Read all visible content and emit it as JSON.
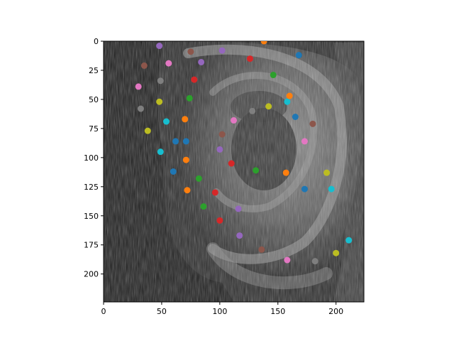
{
  "chart_data": {
    "type": "scatter",
    "title": "",
    "xlabel": "",
    "ylabel": "",
    "xlim": [
      0,
      224
    ],
    "ylim": [
      224,
      0
    ],
    "y_inverted": true,
    "grid": false,
    "background": "grayscale photograph of a human ear (close-up) shown via imshow",
    "xticks": [
      0,
      50,
      100,
      150,
      200
    ],
    "yticks": [
      0,
      25,
      50,
      75,
      100,
      125,
      150,
      175,
      200
    ],
    "color_cycle": [
      "#1f77b4",
      "#ff7f0e",
      "#2ca02c",
      "#d62728",
      "#9467bd",
      "#8c564b",
      "#e377c2",
      "#7f7f7f",
      "#bcbd22",
      "#17becf"
    ],
    "points": [
      {
        "x": 138,
        "y": 0,
        "color": "#ff7f0e"
      },
      {
        "x": 48,
        "y": 4,
        "color": "#9467bd"
      },
      {
        "x": 75,
        "y": 9,
        "color": "#8c564b"
      },
      {
        "x": 102,
        "y": 8,
        "color": "#9467bd"
      },
      {
        "x": 168,
        "y": 12,
        "color": "#1f77b4"
      },
      {
        "x": 126,
        "y": 15,
        "color": "#d62728"
      },
      {
        "x": 35,
        "y": 21,
        "color": "#8c564b"
      },
      {
        "x": 56,
        "y": 19,
        "color": "#e377c2"
      },
      {
        "x": 84,
        "y": 18,
        "color": "#9467bd"
      },
      {
        "x": 146,
        "y": 29,
        "color": "#2ca02c"
      },
      {
        "x": 78,
        "y": 33,
        "color": "#d62728"
      },
      {
        "x": 49,
        "y": 34,
        "color": "#7f7f7f"
      },
      {
        "x": 30,
        "y": 39,
        "color": "#e377c2"
      },
      {
        "x": 74,
        "y": 49,
        "color": "#2ca02c"
      },
      {
        "x": 160,
        "y": 47,
        "color": "#ff7f0e"
      },
      {
        "x": 48,
        "y": 52,
        "color": "#bcbd22"
      },
      {
        "x": 158,
        "y": 52,
        "color": "#17becf"
      },
      {
        "x": 142,
        "y": 56,
        "color": "#bcbd22"
      },
      {
        "x": 32,
        "y": 58,
        "color": "#7f7f7f"
      },
      {
        "x": 128,
        "y": 60,
        "color": "#7f7f7f"
      },
      {
        "x": 165,
        "y": 65,
        "color": "#1f77b4"
      },
      {
        "x": 54,
        "y": 69,
        "color": "#17becf"
      },
      {
        "x": 70,
        "y": 67,
        "color": "#ff7f0e"
      },
      {
        "x": 112,
        "y": 68,
        "color": "#e377c2"
      },
      {
        "x": 180,
        "y": 71,
        "color": "#8c564b"
      },
      {
        "x": 38,
        "y": 77,
        "color": "#bcbd22"
      },
      {
        "x": 102,
        "y": 80,
        "color": "#8c564b"
      },
      {
        "x": 62,
        "y": 86,
        "color": "#1f77b4"
      },
      {
        "x": 71,
        "y": 86,
        "color": "#1f77b4"
      },
      {
        "x": 173,
        "y": 86,
        "color": "#e377c2"
      },
      {
        "x": 49,
        "y": 95,
        "color": "#17becf"
      },
      {
        "x": 100,
        "y": 93,
        "color": "#9467bd"
      },
      {
        "x": 71,
        "y": 102,
        "color": "#ff7f0e"
      },
      {
        "x": 110,
        "y": 105,
        "color": "#d62728"
      },
      {
        "x": 60,
        "y": 112,
        "color": "#1f77b4"
      },
      {
        "x": 131,
        "y": 111,
        "color": "#2ca02c"
      },
      {
        "x": 157,
        "y": 113,
        "color": "#ff7f0e"
      },
      {
        "x": 192,
        "y": 113,
        "color": "#bcbd22"
      },
      {
        "x": 82,
        "y": 118,
        "color": "#2ca02c"
      },
      {
        "x": 173,
        "y": 127,
        "color": "#1f77b4"
      },
      {
        "x": 196,
        "y": 127,
        "color": "#17becf"
      },
      {
        "x": 72,
        "y": 128,
        "color": "#ff7f0e"
      },
      {
        "x": 96,
        "y": 130,
        "color": "#d62728"
      },
      {
        "x": 86,
        "y": 142,
        "color": "#2ca02c"
      },
      {
        "x": 116,
        "y": 144,
        "color": "#9467bd"
      },
      {
        "x": 100,
        "y": 154,
        "color": "#d62728"
      },
      {
        "x": 117,
        "y": 167,
        "color": "#9467bd"
      },
      {
        "x": 211,
        "y": 171,
        "color": "#17becf"
      },
      {
        "x": 136,
        "y": 179,
        "color": "#8c564b"
      },
      {
        "x": 200,
        "y": 182,
        "color": "#bcbd22"
      },
      {
        "x": 158,
        "y": 188,
        "color": "#e377c2"
      },
      {
        "x": 182,
        "y": 189,
        "color": "#7f7f7f"
      }
    ]
  }
}
